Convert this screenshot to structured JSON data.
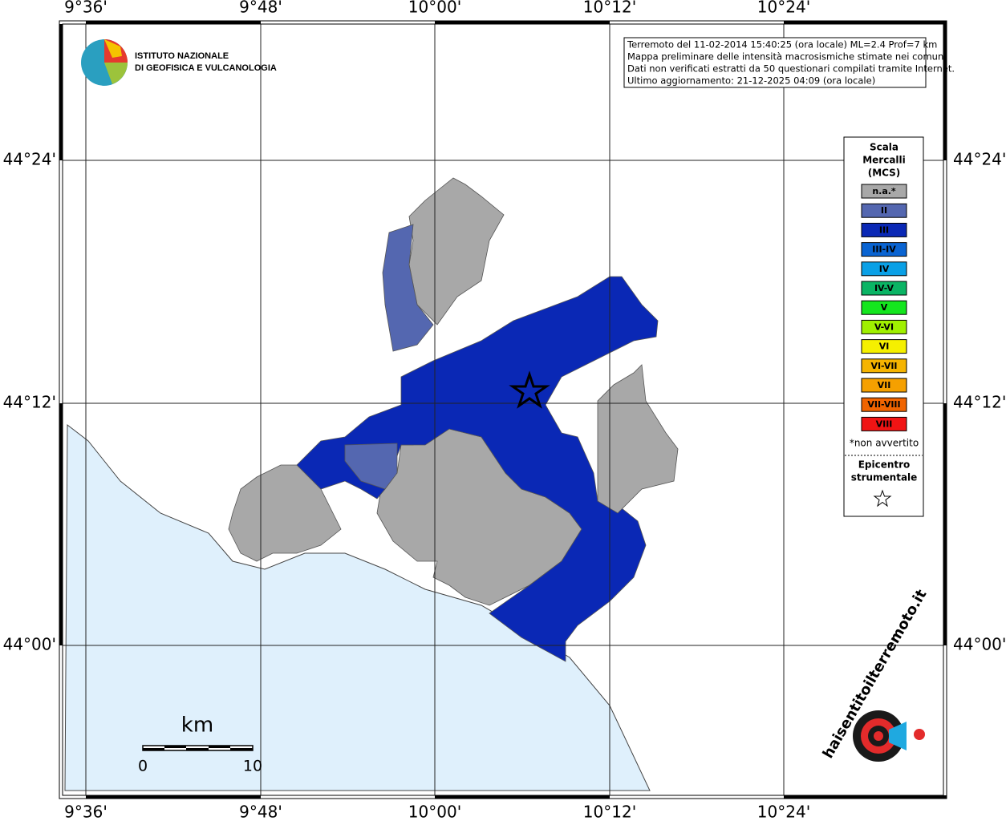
{
  "map": {
    "lon_labels": [
      "9°36'",
      "9°48'",
      "10°00'",
      "10°12'",
      "10°24'"
    ],
    "lat_labels": [
      "44°24'",
      "44°12'",
      "44°00'"
    ],
    "info": [
      "Terremoto del 11-02-2014 15:40:25 (ora locale) ML=2.4 Prof=7 km",
      "Mappa preliminare delle intensità macrosismiche stimate nei comuni",
      "Dati non verificati estratti da 50 questionari compilati tramite Internet.",
      "Ultimo aggiornamento: 21-12-2025 04:09 (ora locale)"
    ],
    "institute": [
      "ISTITUTO NAZIONALE",
      "DI GEOFISICA E VULCANOLOGIA"
    ],
    "legend": {
      "title": [
        "Scala",
        "Mercalli",
        "(MCS)"
      ],
      "items": [
        {
          "label": "n.a.*",
          "color": "#a8a8a8"
        },
        {
          "label": "II",
          "color": "#5467b0"
        },
        {
          "label": "III",
          "color": "#0a28b5"
        },
        {
          "label": "III-IV",
          "color": "#0a64d2"
        },
        {
          "label": "IV",
          "color": "#0aa0e6"
        },
        {
          "label": "IV-V",
          "color": "#0ab464"
        },
        {
          "label": "V",
          "color": "#14e61e"
        },
        {
          "label": "V-VI",
          "color": "#a0f000"
        },
        {
          "label": "VI",
          "color": "#f5f000"
        },
        {
          "label": "VI-VII",
          "color": "#f5b400"
        },
        {
          "label": "VII",
          "color": "#f5a000"
        },
        {
          "label": "VII-VIII",
          "color": "#f06400"
        },
        {
          "label": "VIII",
          "color": "#f01414"
        }
      ],
      "note": "*non avvertito",
      "epicenter": [
        "Epicentro",
        "strumentale"
      ]
    },
    "scale": {
      "unit": "km",
      "ticks": [
        0,
        10
      ]
    },
    "brand": "haisentitoilterremoto.it"
  }
}
